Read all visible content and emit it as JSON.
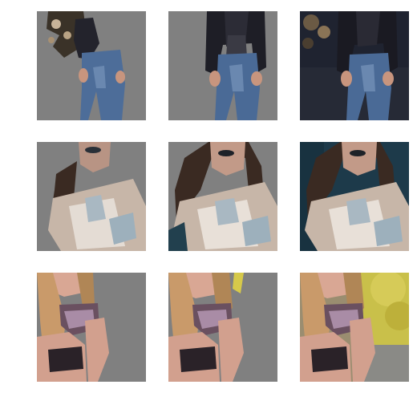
{
  "figure": {
    "rows": [
      {
        "subject": "person-in-leather-jacket-and-jeans",
        "tiles": [
          {
            "variant": "masked-partial",
            "background": "#808080"
          },
          {
            "variant": "masked-full",
            "background": "#808080"
          },
          {
            "variant": "original",
            "background": "#1f2330"
          }
        ]
      },
      {
        "subject": "woman-face-and-torso",
        "tiles": [
          {
            "variant": "masked-partial",
            "background": "#808080"
          },
          {
            "variant": "masked-full",
            "background": "#808080"
          },
          {
            "variant": "original",
            "background": "#1d3a4a"
          }
        ]
      },
      {
        "subject": "woman-blonde-outdoors",
        "tiles": [
          {
            "variant": "masked-partial",
            "background": "#808080"
          },
          {
            "variant": "masked-full",
            "background": "#808080"
          },
          {
            "variant": "original",
            "background": "#c9c04a"
          }
        ]
      }
    ],
    "colors": {
      "mask_gray": "#808080",
      "jeans": "#4a6a96",
      "jacket": "#1e1e26",
      "skin": "#d9a794",
      "hair_dark": "#3a2a22",
      "hair_blonde": "#c99a6a",
      "foliage": "#d6c94a"
    }
  }
}
